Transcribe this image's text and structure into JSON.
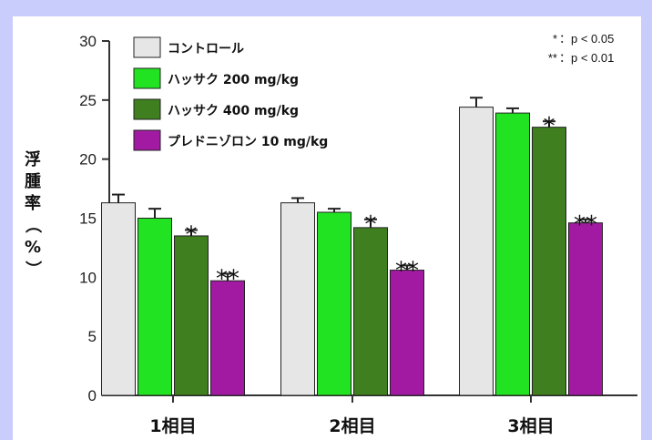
{
  "chart_data": {
    "type": "bar",
    "categories": [
      "1相目",
      "2相目",
      "3相目"
    ],
    "ylabel": "浮腫率（%）",
    "ylim": [
      0,
      30
    ],
    "yticks": [
      "0",
      "5",
      "10",
      "15",
      "20",
      "25",
      "30"
    ],
    "series": [
      {
        "name": "コントロール",
        "color": "#e6e6e6",
        "values": [
          16.3,
          16.3,
          24.4
        ],
        "errors": [
          0.7,
          0.4,
          0.8
        ],
        "sig": [
          "",
          "",
          ""
        ]
      },
      {
        "name": "ハッサク 200 mg/kg",
        "color": "#22e322",
        "values": [
          15.0,
          15.5,
          23.9
        ],
        "errors": [
          0.8,
          0.3,
          0.4
        ],
        "sig": [
          "",
          "",
          ""
        ]
      },
      {
        "name": "ハッサク 400 mg/kg",
        "color": "#3f7f1f",
        "values": [
          13.5,
          14.2,
          22.7
        ],
        "errors": [
          0.5,
          0.7,
          0.5
        ],
        "sig": [
          "*",
          "*",
          "*"
        ]
      },
      {
        "name": "プレドニゾロン 10 mg/kg",
        "color": "#a11aa1",
        "values": [
          9.7,
          10.6,
          14.6
        ],
        "errors": [
          0.6,
          0.4,
          0.3
        ],
        "sig": [
          "**",
          "**",
          "**"
        ]
      }
    ],
    "significance_legend": [
      {
        "mark": "*",
        "text": "：p < 0.05"
      },
      {
        "mark": "**",
        "text": "：p < 0.01"
      }
    ],
    "grid": false,
    "legend_position": "top-left"
  }
}
